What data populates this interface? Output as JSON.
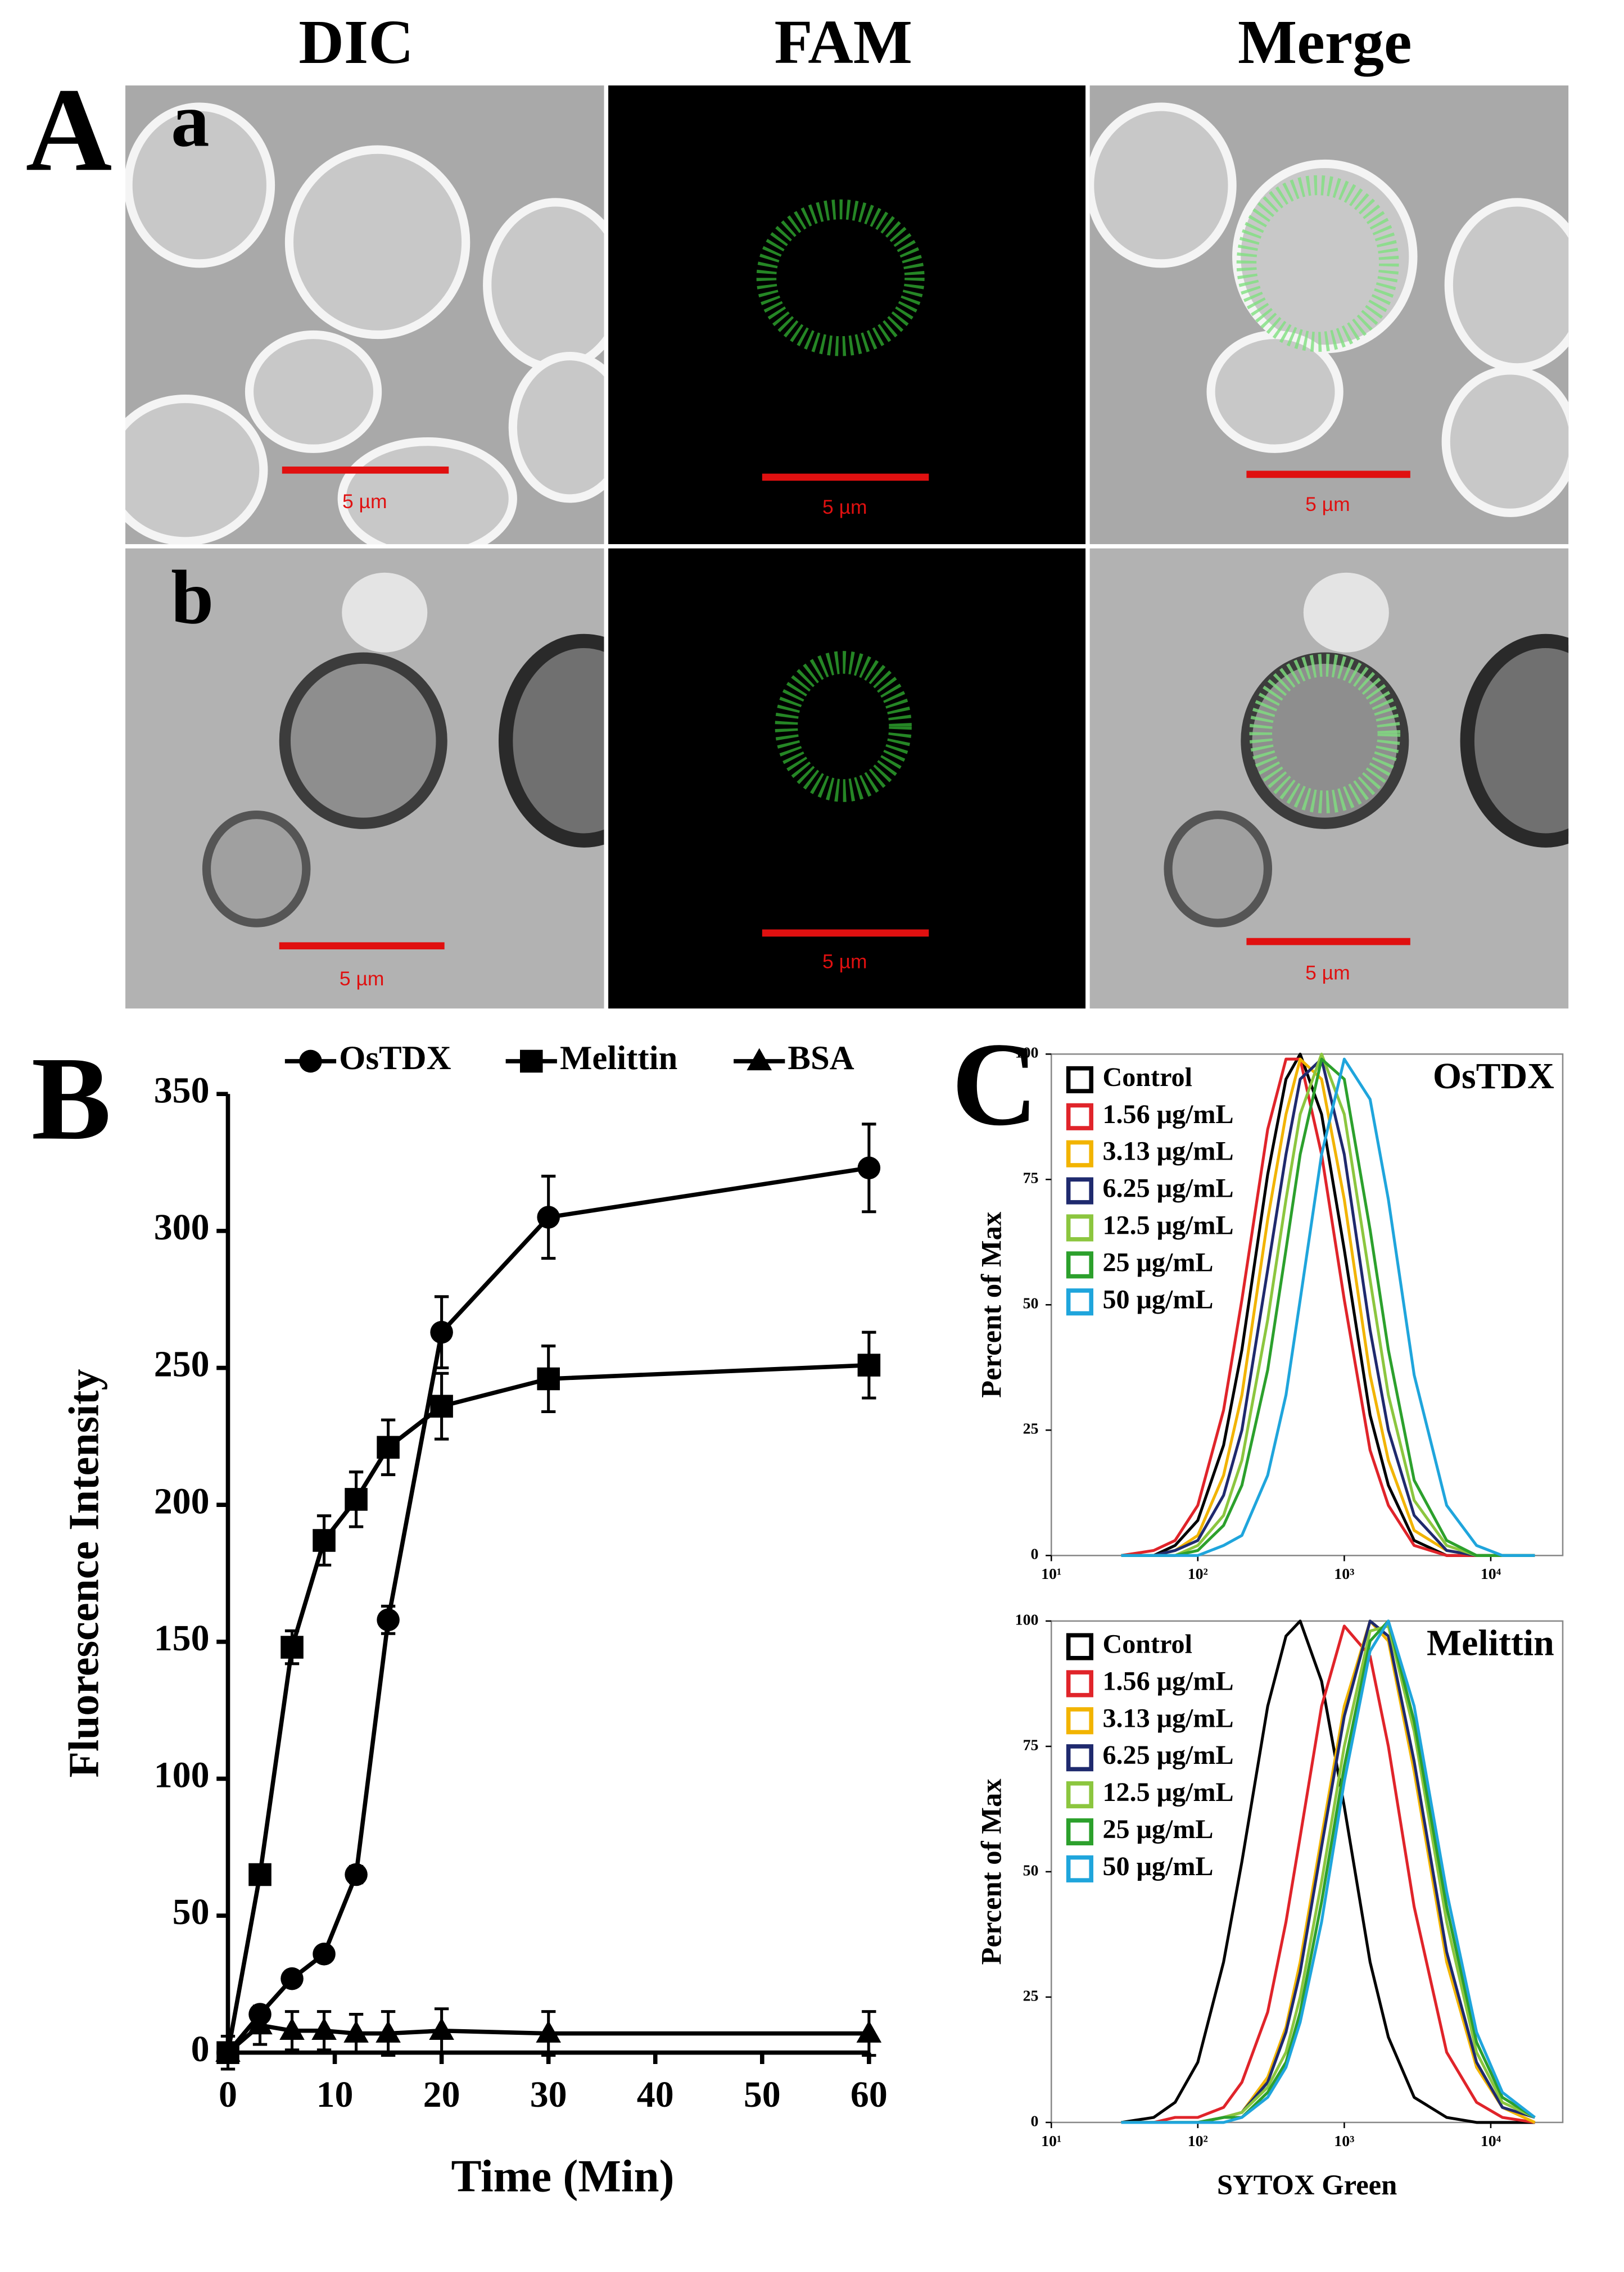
{
  "panel_A": {
    "label": "A",
    "columns": [
      "DIC",
      "FAM",
      "Merge"
    ],
    "rows": [
      {
        "label": "a",
        "scale_bars": [
          "5 µm",
          "5 µm",
          "5 µm"
        ]
      },
      {
        "label": "b",
        "scale_bars": [
          "5 µm",
          "5 µm",
          "5 µm"
        ]
      }
    ]
  },
  "chart_data": [
    {
      "type": "line",
      "panel_label": "B",
      "xlabel": "Time (Min)",
      "ylabel": "Fluorescence Intensity",
      "x": [
        0,
        3,
        6,
        9,
        12,
        15,
        20,
        30,
        60
      ],
      "xlim": [
        0,
        60
      ],
      "xticks": [
        0,
        10,
        20,
        30,
        40,
        50,
        60
      ],
      "ylim": [
        0,
        350
      ],
      "yticks": [
        0,
        50,
        100,
        150,
        200,
        250,
        300,
        350
      ],
      "legend": "top",
      "series": [
        {
          "name": "OsTDX",
          "color": "#000000",
          "marker": "circle",
          "values": [
            0,
            14,
            27,
            36,
            65,
            158,
            263,
            305,
            323
          ],
          "errors": [
            0,
            2,
            2,
            2,
            3,
            5,
            13,
            15,
            16
          ]
        },
        {
          "name": "Melittin",
          "color": "#000000",
          "marker": "square",
          "values": [
            0,
            65,
            148,
            187,
            202,
            221,
            236,
            246,
            251
          ],
          "errors": [
            0,
            3,
            6,
            9,
            10,
            10,
            12,
            12,
            12
          ]
        },
        {
          "name": "BSA",
          "color": "#000000",
          "marker": "triangle",
          "values": [
            0,
            10,
            8,
            8,
            7,
            7,
            8,
            7,
            7
          ],
          "errors": [
            6,
            7,
            7,
            7,
            7,
            8,
            8,
            8,
            8
          ]
        }
      ]
    },
    {
      "type": "line",
      "panel_label": "C",
      "title": "OsTDX",
      "ylabel": "Percent of Max",
      "xscale": "log",
      "x": [
        30,
        50,
        70,
        100,
        150,
        200,
        300,
        400,
        500,
        700,
        1000,
        1500,
        2000,
        3000,
        5000,
        8000,
        12000,
        20000
      ],
      "xlim": [
        10,
        31000
      ],
      "xticks": [
        {
          "value": 10,
          "label": "10¹"
        },
        {
          "value": 100,
          "label": "10²"
        },
        {
          "value": 1000,
          "label": "10³"
        },
        {
          "value": 10000,
          "label": "10⁴"
        }
      ],
      "ylim": [
        0,
        100
      ],
      "yticks": [
        0,
        25,
        50,
        75,
        100
      ],
      "legend": "top-left",
      "series": [
        {
          "name": "Control",
          "color": "#000000",
          "values": [
            0,
            0,
            2,
            7,
            22,
            41,
            76,
            95,
            100,
            88,
            61,
            28,
            14,
            3,
            0,
            0,
            0,
            0
          ]
        },
        {
          "name": "1.56 μg/mL",
          "color": "#e0242a",
          "values": [
            0,
            1,
            3,
            10,
            29,
            51,
            85,
            99,
            99,
            80,
            51,
            21,
            10,
            2,
            0,
            0,
            0,
            0
          ]
        },
        {
          "name": "3.13 μg/mL",
          "color": "#f2b400",
          "values": [
            0,
            0,
            1,
            4,
            16,
            32,
            67,
            88,
            99,
            95,
            71,
            36,
            19,
            5,
            1,
            0,
            0,
            0
          ]
        },
        {
          "name": "6.25 μg/mL",
          "color": "#1f2a6e",
          "values": [
            0,
            0,
            1,
            3,
            12,
            25,
            57,
            80,
            95,
            99,
            80,
            45,
            25,
            8,
            1,
            0,
            0,
            0
          ]
        },
        {
          "name": "12.5 μg/mL",
          "color": "#8cc63f",
          "values": [
            0,
            0,
            0,
            2,
            8,
            19,
            47,
            71,
            88,
            100,
            88,
            55,
            32,
            11,
            2,
            0,
            0,
            0
          ]
        },
        {
          "name": "25 μg/mL",
          "color": "#2ca02c",
          "values": [
            0,
            0,
            0,
            1,
            6,
            14,
            37,
            61,
            80,
            99,
            95,
            65,
            41,
            15,
            3,
            0,
            0,
            0
          ]
        },
        {
          "name": "50 μg/mL",
          "color": "#1fa5dc",
          "values": [
            0,
            0,
            0,
            0,
            2,
            4,
            16,
            32,
            51,
            80,
            99,
            91,
            71,
            36,
            10,
            2,
            0,
            0
          ]
        }
      ]
    },
    {
      "type": "line",
      "title": "Melittin",
      "ylabel": "Percent of Max",
      "xlabel": "SYTOX Green",
      "xscale": "log",
      "x": [
        30,
        50,
        70,
        100,
        150,
        200,
        300,
        400,
        500,
        700,
        1000,
        1500,
        2000,
        3000,
        5000,
        8000,
        12000,
        20000
      ],
      "xlim": [
        10,
        31000
      ],
      "xticks": [
        {
          "value": 10,
          "label": "10¹"
        },
        {
          "value": 100,
          "label": "10²"
        },
        {
          "value": 1000,
          "label": "10³"
        },
        {
          "value": 10000,
          "label": "10⁴"
        }
      ],
      "ylim": [
        0,
        100
      ],
      "yticks": [
        0,
        25,
        50,
        75,
        100
      ],
      "legend": "top-left",
      "series": [
        {
          "name": "Control",
          "color": "#000000",
          "values": [
            0,
            1,
            4,
            12,
            32,
            52,
            83,
            97,
            100,
            88,
            63,
            32,
            17,
            5,
            1,
            0,
            0,
            0
          ]
        },
        {
          "name": "1.56 μg/mL",
          "color": "#e0242a",
          "values": [
            0,
            0,
            1,
            1,
            3,
            8,
            22,
            40,
            57,
            83,
            99,
            93,
            75,
            43,
            14,
            4,
            1,
            0
          ]
        },
        {
          "name": "3.13 μg/mL",
          "color": "#f2b400",
          "values": [
            0,
            0,
            0,
            0,
            1,
            2,
            9,
            19,
            32,
            57,
            83,
            100,
            96,
            70,
            32,
            11,
            3,
            0
          ]
        },
        {
          "name": "6.25 μg/mL",
          "color": "#1f2a6e",
          "values": [
            0,
            0,
            0,
            0,
            1,
            2,
            8,
            18,
            30,
            55,
            81,
            100,
            97,
            72,
            34,
            12,
            3,
            1
          ]
        },
        {
          "name": "12.5 μg/mL",
          "color": "#8cc63f",
          "values": [
            0,
            0,
            0,
            0,
            1,
            2,
            7,
            14,
            25,
            48,
            75,
            98,
            99,
            78,
            40,
            14,
            4,
            1
          ]
        },
        {
          "name": "25 μg/mL",
          "color": "#2ca02c",
          "values": [
            0,
            0,
            0,
            0,
            1,
            1,
            6,
            12,
            22,
            44,
            71,
            96,
            100,
            80,
            43,
            16,
            5,
            1
          ]
        },
        {
          "name": "50 μg/mL",
          "color": "#1fa5dc",
          "values": [
            0,
            0,
            0,
            0,
            0,
            1,
            5,
            11,
            20,
            40,
            68,
            94,
            100,
            83,
            46,
            18,
            6,
            1
          ]
        }
      ]
    }
  ]
}
